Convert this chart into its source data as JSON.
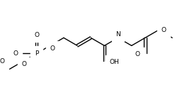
{
  "bg_color": "#ffffff",
  "line_color": "#000000",
  "lw": 1.0,
  "fs": 6.5,
  "fig_width": 2.71,
  "fig_height": 1.41,
  "dpi": 100,
  "xlim": [
    0.0,
    10.5
  ],
  "ylim": [
    0.5,
    5.5
  ]
}
